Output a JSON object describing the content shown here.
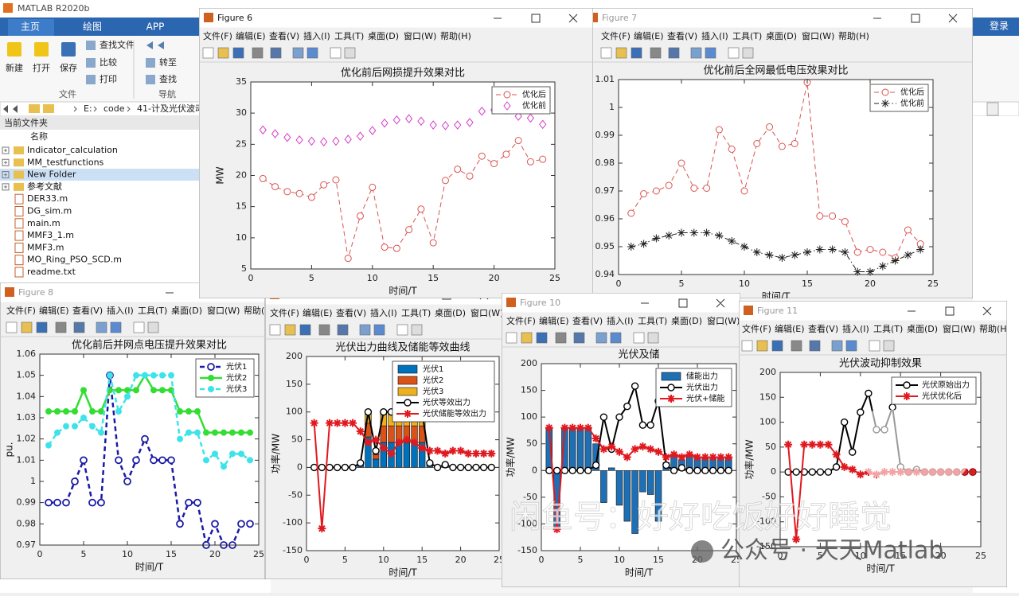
{
  "matlab": {
    "title": "MATLAB R2020b",
    "tabs": [
      "主页",
      "绘图",
      "APP"
    ],
    "login": "登录",
    "buttons": [
      "新建",
      "打开",
      "保存",
      "查找文件",
      "比较",
      "打印",
      "转至",
      "查找"
    ],
    "sections": [
      "文件",
      "导航"
    ],
    "path": [
      "E:",
      "code",
      "41-计及光伏波动"
    ],
    "panel_title": "当前文件夹",
    "column": "名称",
    "files": [
      "Indicator_calculation",
      "MM_testfunctions",
      "New Folder",
      "参考文献",
      "DER33.m",
      "DG_sim.m",
      "main.m",
      "MMF3_1.m",
      "MMF3.m",
      "MO_Ring_PSO_SCD.m",
      "readme.txt"
    ]
  },
  "menu": [
    "文件(F)",
    "编辑(E)",
    "查看(V)",
    "插入(I)",
    "工具(T)",
    "桌面(D)",
    "窗口(W)",
    "帮助(H)"
  ],
  "figure_titles": [
    "Figure 6",
    "Figure 7",
    "Figure 8",
    "Figure 10",
    "Figure 11"
  ],
  "watermarks": [
    "闲鱼号：好好吃饭好好睡觉",
    "公众号 · 天天Matlab"
  ],
  "chart_data": [
    {
      "type": "line",
      "title": "优化前后网损提升效果对比",
      "xlabel": "时间/T",
      "ylabel": "MW",
      "xlim": [
        0,
        25
      ],
      "xticks": [
        0,
        5,
        10,
        15,
        20,
        25
      ],
      "ylim": [
        5,
        35
      ],
      "yticks": [
        5,
        10,
        15,
        20,
        25,
        30,
        35
      ],
      "legend": "upper right",
      "x": [
        1,
        2,
        3,
        4,
        5,
        6,
        7,
        8,
        9,
        10,
        11,
        12,
        13,
        14,
        15,
        16,
        17,
        18,
        19,
        20,
        21,
        22,
        23,
        24
      ],
      "series": [
        {
          "name": "优化后",
          "color": "#d9534f",
          "kind": "line",
          "line": "dashed",
          "marker": "o",
          "line_width": 1,
          "values": [
            19.5,
            18.2,
            17.4,
            17.1,
            16.5,
            18.5,
            19.3,
            6.7,
            13.5,
            18.1,
            8.5,
            8.3,
            11.3,
            14.6,
            9.2,
            19.2,
            21,
            19.9,
            23.1,
            21.9,
            23.4,
            25.6,
            22.2,
            22.6
          ]
        },
        {
          "name": "优化前",
          "color": "#d63fc8",
          "kind": "line",
          "line": "none",
          "marker": "d",
          "line_width": 1,
          "values": [
            27.3,
            26.7,
            26.1,
            25.7,
            25.5,
            25.4,
            25.5,
            25.8,
            26.3,
            27.2,
            28.4,
            28.9,
            29.1,
            28.7,
            28.1,
            28,
            28.1,
            28.5,
            30.3,
            30.5,
            30.5,
            29.5,
            29.2,
            28.2
          ]
        }
      ]
    },
    {
      "type": "line",
      "title": "优化前后全网最低电压效果对比",
      "xlabel": "时间/T",
      "xlim": [
        0,
        25
      ],
      "xticks": [
        0,
        5,
        10,
        15,
        20,
        25
      ],
      "ylim": [
        0.94,
        1.01
      ],
      "yticks": [
        0.94,
        0.95,
        0.96,
        0.97,
        0.98,
        0.99,
        1,
        1.01
      ],
      "legend": "upper right",
      "x": [
        1,
        2,
        3,
        4,
        5,
        6,
        7,
        8,
        9,
        10,
        11,
        12,
        13,
        14,
        15,
        16,
        17,
        18,
        19,
        20,
        21,
        22,
        23,
        24
      ],
      "series": [
        {
          "name": "优化后",
          "color": "#d9534f",
          "kind": "line",
          "line": "dashed",
          "marker": "o",
          "line_width": 1,
          "values": [
            0.962,
            0.969,
            0.97,
            0.972,
            0.98,
            0.971,
            0.971,
            0.992,
            0.985,
            0.97,
            0.987,
            0.993,
            0.986,
            0.987,
            1.009,
            0.961,
            0.961,
            0.959,
            0.948,
            0.949,
            0.948,
            0.946,
            0.956,
            0.951
          ]
        },
        {
          "name": "优化前",
          "color": "#222222",
          "kind": "line",
          "line": "dashdot",
          "marker": "*",
          "line_width": 1,
          "values": [
            0.95,
            0.951,
            0.953,
            0.954,
            0.955,
            0.955,
            0.955,
            0.954,
            0.952,
            0.95,
            0.948,
            0.947,
            0.946,
            0.947,
            0.948,
            0.949,
            0.949,
            0.948,
            0.941,
            0.941,
            0.943,
            0.945,
            0.947,
            0.949
          ]
        }
      ]
    },
    {
      "type": "line",
      "title": "优化前后并网点电压提升效果对比",
      "xlabel": "时间/T",
      "ylabel": "pu.",
      "xlim": [
        0,
        25
      ],
      "xticks": [
        0,
        5,
        10,
        15,
        20,
        25
      ],
      "ylim": [
        0.97,
        1.06
      ],
      "yticks": [
        0.97,
        0.98,
        0.99,
        1,
        1.01,
        1.02,
        1.03,
        1.04,
        1.05,
        1.06
      ],
      "legend": "upper right",
      "x": [
        1,
        2,
        3,
        4,
        5,
        6,
        7,
        8,
        9,
        10,
        11,
        12,
        13,
        14,
        15,
        16,
        17,
        18,
        19,
        20,
        21,
        22,
        23,
        24
      ],
      "series": [
        {
          "name": "光伏1",
          "color": "#1a1aa6",
          "kind": "line",
          "line": "dashed",
          "marker": "o",
          "line_width": 2.5,
          "values": [
            0.99,
            0.99,
            0.99,
            1,
            1.01,
            0.99,
            0.99,
            1.05,
            1.01,
            1,
            1.01,
            1.02,
            1.01,
            1.01,
            1.01,
            0.98,
            0.99,
            0.99,
            0.97,
            0.98,
            0.97,
            0.97,
            0.98,
            0.98
          ]
        },
        {
          "name": "光伏2",
          "color": "#33dd33",
          "kind": "line",
          "line": "solid",
          "marker": "filled",
          "line_width": 2.5,
          "values": [
            1.033,
            1.033,
            1.033,
            1.033,
            1.043,
            1.033,
            1.033,
            1.043,
            1.043,
            1.043,
            1.043,
            1.05,
            1.043,
            1.043,
            1.043,
            1.033,
            1.033,
            1.033,
            1.023,
            1.023,
            1.023,
            1.023,
            1.023,
            1.023
          ]
        },
        {
          "name": "光伏3",
          "color": "#3ee3ea",
          "kind": "line",
          "line": "dashed",
          "marker": "filled",
          "line_width": 2.5,
          "values": [
            1.017,
            1.023,
            1.026,
            1.026,
            1.03,
            1.026,
            1.023,
            1.05,
            1.033,
            1.04,
            1.05,
            1.05,
            1.05,
            1.05,
            1.05,
            1.02,
            1.023,
            1.023,
            1.01,
            1.013,
            1.007,
            1.013,
            1.013,
            1.01
          ]
        }
      ]
    },
    {
      "type": "combo",
      "title": "光伏出力曲线及储能等效曲线",
      "xlabel": "时间/T",
      "ylabel": "功率/MW",
      "xlim": [
        0,
        25
      ],
      "xticks": [
        0,
        5,
        10,
        15,
        20,
        25
      ],
      "ylim": [
        -150,
        200
      ],
      "yticks": [
        -150,
        -100,
        -50,
        0,
        50,
        100,
        150,
        200
      ],
      "legend": "upper right",
      "x": [
        1,
        2,
        3,
        4,
        5,
        6,
        7,
        8,
        9,
        10,
        11,
        12,
        13,
        14,
        15,
        16,
        17,
        18,
        19,
        20,
        21,
        22,
        23,
        24
      ],
      "series": [
        {
          "name": "光伏1",
          "color": "#0072bd",
          "kind": "bar",
          "values": [
            0,
            0,
            0,
            0,
            0,
            0,
            4,
            55,
            15,
            45,
            45,
            45,
            45,
            45,
            45,
            4,
            0,
            3,
            0,
            0,
            0,
            0,
            0,
            0
          ]
        },
        {
          "name": "光伏2",
          "color": "#d95319",
          "kind": "bar",
          "values": [
            0,
            0,
            0,
            0,
            0,
            0,
            2,
            25,
            8,
            30,
            30,
            30,
            30,
            30,
            30,
            2,
            0,
            1,
            0,
            0,
            0,
            0,
            0,
            0
          ]
        },
        {
          "name": "光伏3",
          "color": "#edb120",
          "kind": "bar",
          "values": [
            0,
            0,
            0,
            0,
            0,
            0,
            2,
            20,
            7,
            25,
            25,
            25,
            25,
            25,
            25,
            2,
            0,
            1,
            0,
            0,
            0,
            0,
            0,
            0
          ]
        },
        {
          "name": "光伏等效出力",
          "color": "#000000",
          "kind": "line",
          "line": "solid",
          "marker": "o",
          "line_width": 2,
          "values": [
            0,
            0,
            0,
            0,
            0,
            0,
            8,
            100,
            30,
            100,
            100,
            100,
            100,
            100,
            100,
            8,
            0,
            5,
            0,
            0,
            0,
            0,
            0,
            0
          ]
        },
        {
          "name": "光伏储能等效出力",
          "color": "#e0191f",
          "kind": "line",
          "line": "solid",
          "marker": "*",
          "line_width": 2,
          "values": [
            80,
            -110,
            80,
            80,
            80,
            80,
            65,
            45,
            50,
            35,
            25,
            45,
            50,
            45,
            35,
            30,
            30,
            25,
            30,
            30,
            25,
            25,
            25,
            25
          ]
        }
      ]
    },
    {
      "type": "combo",
      "title": "光伏及储",
      "xlabel": "时间/T",
      "ylabel": "功率/MW",
      "xlim": [
        0,
        25
      ],
      "xticks": [
        0,
        5,
        10,
        15,
        20,
        25
      ],
      "ylim": [
        -150,
        200
      ],
      "yticks": [
        -150,
        -100,
        -50,
        0,
        50,
        100,
        150,
        200
      ],
      "legend": "upper right",
      "x": [
        1,
        2,
        3,
        4,
        5,
        6,
        7,
        8,
        9,
        10,
        11,
        12,
        13,
        14,
        15,
        16,
        17,
        18,
        19,
        20,
        21,
        22,
        23,
        24
      ],
      "series": [
        {
          "name": "储能出力",
          "color": "#1f6fb4",
          "kind": "bar",
          "values": [
            80,
            -110,
            80,
            80,
            80,
            80,
            50,
            -60,
            5,
            -65,
            -95,
            -118,
            -40,
            -45,
            -95,
            15,
            30,
            20,
            30,
            25,
            25,
            25,
            25,
            25
          ]
        },
        {
          "name": "光伏出力",
          "color": "#000000",
          "kind": "line",
          "line": "solid",
          "marker": "o",
          "line_width": 2,
          "values": [
            0,
            0,
            0,
            0,
            0,
            0,
            10,
            100,
            40,
            100,
            120,
            158,
            85,
            85,
            130,
            10,
            0,
            5,
            0,
            0,
            0,
            0,
            0,
            0
          ]
        },
        {
          "name": "光伏+储能",
          "color": "#e0191f",
          "kind": "line",
          "line": "solid",
          "marker": "*",
          "line_width": 2,
          "values": [
            80,
            -110,
            80,
            80,
            80,
            80,
            60,
            40,
            45,
            35,
            25,
            40,
            45,
            40,
            35,
            25,
            30,
            25,
            30,
            25,
            25,
            25,
            25,
            25
          ]
        }
      ]
    },
    {
      "type": "line",
      "title": "光伏波动抑制效果",
      "xlabel": "时间/T",
      "ylabel": "功率/MW",
      "xlim": [
        0,
        25
      ],
      "xticks": [
        0,
        5,
        10,
        15,
        20,
        25
      ],
      "ylim": [
        -150,
        200
      ],
      "yticks": [
        -150,
        -100,
        -50,
        0,
        50,
        100,
        150,
        200
      ],
      "legend": "upper right",
      "x": [
        1,
        2,
        3,
        4,
        5,
        6,
        7,
        8,
        9,
        10,
        11,
        12,
        13,
        14,
        15,
        16,
        17,
        18,
        19,
        20,
        21,
        22,
        23,
        24
      ],
      "series": [
        {
          "name": "光伏原始出力",
          "color": "#000000",
          "kind": "line",
          "line": "solid",
          "marker": "o",
          "line_width": 2,
          "values": [
            0,
            0,
            0,
            0,
            0,
            0,
            10,
            100,
            40,
            120,
            158,
            85,
            85,
            130,
            10,
            0,
            5,
            0,
            0,
            0,
            0,
            0,
            0,
            0
          ]
        },
        {
          "name": "光伏优化后",
          "color": "#e0191f",
          "kind": "line",
          "line": "solid",
          "marker": "*",
          "line_width": 2,
          "values": [
            55,
            -135,
            55,
            55,
            55,
            55,
            35,
            10,
            5,
            -5,
            0,
            -5,
            0,
            0,
            0,
            0,
            0,
            0,
            0,
            0,
            0,
            0,
            0,
            0
          ]
        }
      ]
    }
  ]
}
